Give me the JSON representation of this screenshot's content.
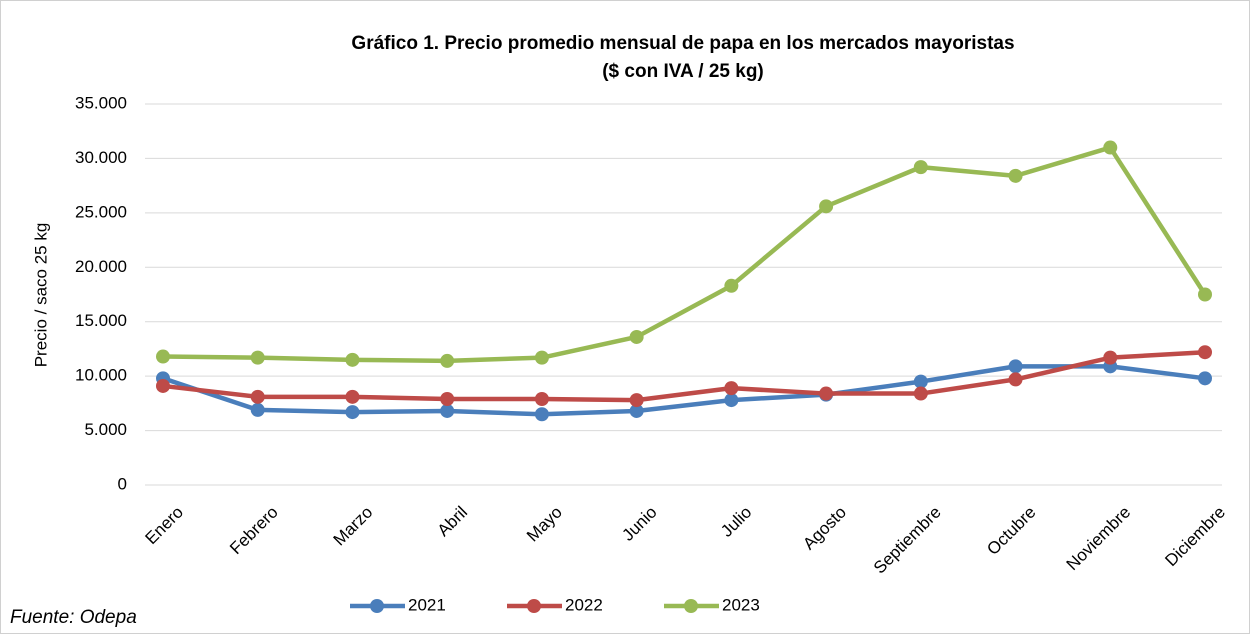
{
  "chart_data": {
    "type": "line",
    "title": "Gráfico 1. Precio promedio mensual de papa en los mercados mayoristas",
    "subtitle": "($ con IVA / 25 kg)",
    "y_label": "Precio / saco 25 kg",
    "source": "Fuente: Odepa",
    "categories": [
      "Enero",
      "Febrero",
      "Marzo",
      "Abril",
      "Mayo",
      "Junio",
      "Julio",
      "Agosto",
      "Septiembre",
      "Octubre",
      "Noviembre",
      "Diciembre"
    ],
    "series": [
      {
        "name": "2021",
        "color": "#4a7ebb",
        "values": [
          9800,
          6900,
          6700,
          6800,
          6500,
          6800,
          7800,
          8300,
          9500,
          10900,
          10900,
          9800
        ]
      },
      {
        "name": "2022",
        "color": "#be4b48",
        "values": [
          9100,
          8100,
          8100,
          7900,
          7900,
          7800,
          8900,
          8400,
          8400,
          9700,
          11700,
          12200
        ]
      },
      {
        "name": "2023",
        "color": "#98b954",
        "values": [
          11800,
          11700,
          11500,
          11400,
          11700,
          13600,
          18300,
          25600,
          29200,
          28400,
          31000,
          17500
        ]
      }
    ],
    "ylim": [
      0,
      35000
    ],
    "yticks": [
      0,
      {
        "value": 5000,
        "label": "5.000"
      },
      {
        "value": 10000,
        "label": "10.000"
      },
      {
        "value": 15000,
        "label": "15.000"
      },
      {
        "value": 20000,
        "label": "20.000"
      },
      {
        "value": 25000,
        "label": "25.000"
      },
      {
        "value": 30000,
        "label": "30.000"
      },
      {
        "value": 35000,
        "label": "35.000"
      }
    ],
    "grid": true
  }
}
